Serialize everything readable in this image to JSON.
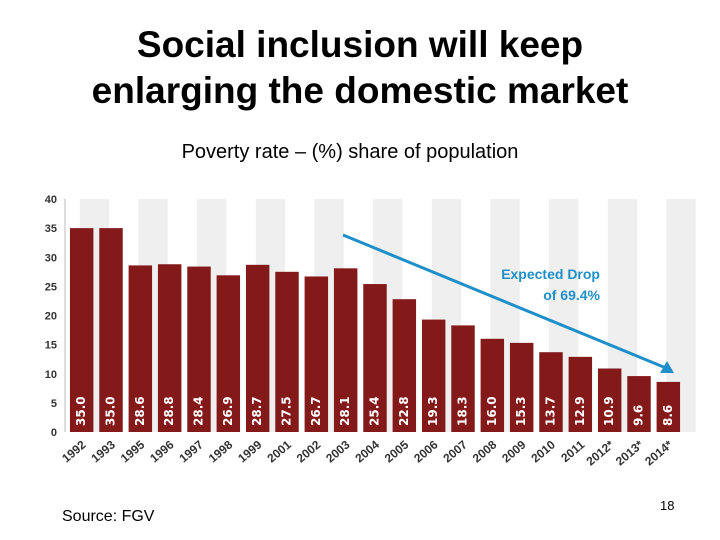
{
  "slide": {
    "title_lines": [
      "Social inclusion will keep",
      "enlarging the domestic market"
    ],
    "subtitle": "Poverty rate – (%) share of population",
    "source": "Source: FGV",
    "page_number": "18"
  },
  "chart_data": {
    "type": "bar",
    "title": "Poverty rate – (%) share of population",
    "xlabel": "",
    "ylabel": "",
    "ylim": [
      0,
      40
    ],
    "yticks": [
      0,
      5,
      10,
      15,
      20,
      25,
      30,
      35,
      40
    ],
    "categories": [
      "1992",
      "1993",
      "1995",
      "1996",
      "1997",
      "1998",
      "1999",
      "2001",
      "2002",
      "2003",
      "2004",
      "2005",
      "2006",
      "2007",
      "2008",
      "2009",
      "2010",
      "2011",
      "2012*",
      "2013*",
      "2014*"
    ],
    "values": [
      35.0,
      35.0,
      28.6,
      28.8,
      28.4,
      26.9,
      28.7,
      27.5,
      26.7,
      28.1,
      25.4,
      22.8,
      19.3,
      18.3,
      16.0,
      15.3,
      13.7,
      12.9,
      10.9,
      9.6,
      8.6
    ],
    "data_labels": [
      "35.0",
      "35.0",
      "28.6",
      "28.8",
      "28.4",
      "26.9",
      "28.7",
      "27.5",
      "26.7",
      "28.1",
      "25.4",
      "22.8",
      "19.3",
      "18.3",
      "16.0",
      "15.3",
      "13.7",
      "12.9",
      "10.9",
      "9.6",
      "8.6"
    ],
    "bar_color": "#84191a",
    "stripe_color": "#efefef",
    "grid": false,
    "annotation": {
      "lines": [
        "Expected Drop",
        "of 69.4%"
      ],
      "color": "#1f8fc9",
      "arrow_from": "2003",
      "arrow_to": "2014*"
    }
  }
}
